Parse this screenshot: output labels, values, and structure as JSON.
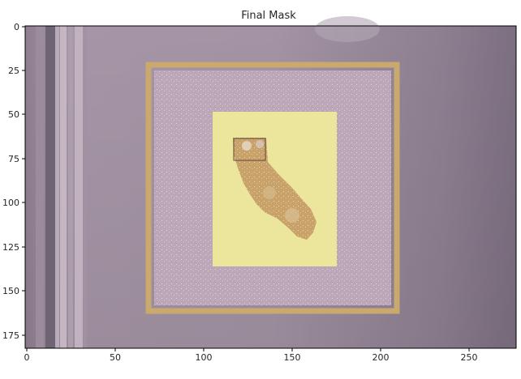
{
  "figure": {
    "title": "Final Mask",
    "x_ticks": [
      "0",
      "50",
      "100",
      "150",
      "200",
      "250"
    ],
    "y_ticks": [
      "0",
      "25",
      "50",
      "75",
      "100",
      "125",
      "150",
      "175"
    ]
  }
}
